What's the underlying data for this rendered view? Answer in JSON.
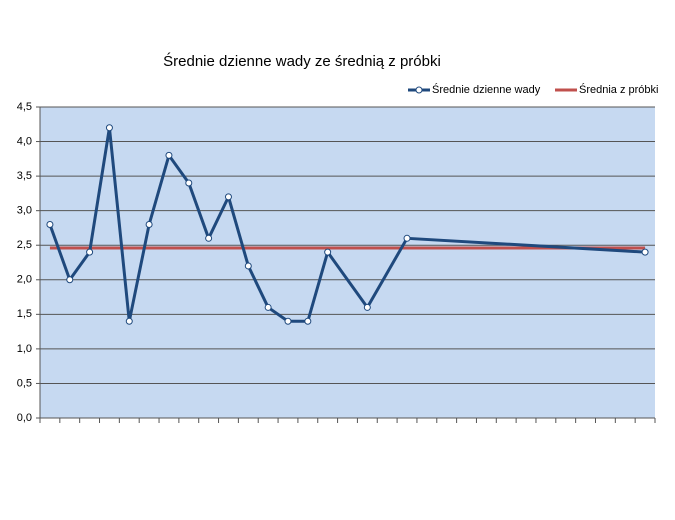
{
  "chart_data": {
    "type": "line",
    "title": "Średnie dzienne wady ze średnią z próbki",
    "x": [
      1,
      2,
      3,
      4,
      5,
      6,
      7,
      8,
      9,
      10,
      11,
      12,
      13,
      14,
      15,
      17,
      19,
      31
    ],
    "xlim": [
      0.5,
      31.5
    ],
    "xticks": [
      0.5,
      1.5,
      2.5,
      3.5,
      4.5,
      5.5,
      6.5,
      7.5,
      8.5,
      9.5,
      10.5,
      11.5,
      12.5,
      13.5,
      14.5,
      15.5,
      16.5,
      17.5,
      18.5,
      19.5,
      20.5,
      21.5,
      22.5,
      23.5,
      24.5,
      25.5,
      26.5,
      27.5,
      28.5,
      29.5,
      30.5,
      31.5
    ],
    "series": [
      {
        "name": "Średnie dzienne wady",
        "color": "#1f497d",
        "markers": true,
        "values": [
          2.8,
          2.0,
          2.4,
          4.2,
          1.4,
          2.8,
          3.8,
          3.4,
          2.6,
          3.2,
          2.2,
          1.6,
          1.4,
          1.4,
          2.4,
          1.6,
          2.6,
          2.4
        ]
      },
      {
        "name": "Średnia z próbki",
        "color": "#c0504d",
        "markers": false,
        "values": [
          2.46,
          2.46,
          2.46,
          2.46,
          2.46,
          2.46,
          2.46,
          2.46,
          2.46,
          2.46,
          2.46,
          2.46,
          2.46,
          2.46,
          2.46,
          2.46,
          2.46,
          2.46
        ]
      }
    ],
    "ylim": [
      0,
      4.5
    ],
    "yticks": [
      {
        "value": 0,
        "label": "0,0"
      },
      {
        "value": 0.5,
        "label": "0,5"
      },
      {
        "value": 1,
        "label": "1,0"
      },
      {
        "value": 1.5,
        "label": "1,5"
      },
      {
        "value": 2,
        "label": "2,0"
      },
      {
        "value": 2.5,
        "label": "2,5"
      },
      {
        "value": 3,
        "label": "3,0"
      },
      {
        "value": 3.5,
        "label": "3,5"
      },
      {
        "value": 4,
        "label": "4,0"
      },
      {
        "value": 4.5,
        "label": "4,5"
      }
    ],
    "grid": true,
    "legend": "top-right",
    "plot_background": "#c6d9f1"
  }
}
